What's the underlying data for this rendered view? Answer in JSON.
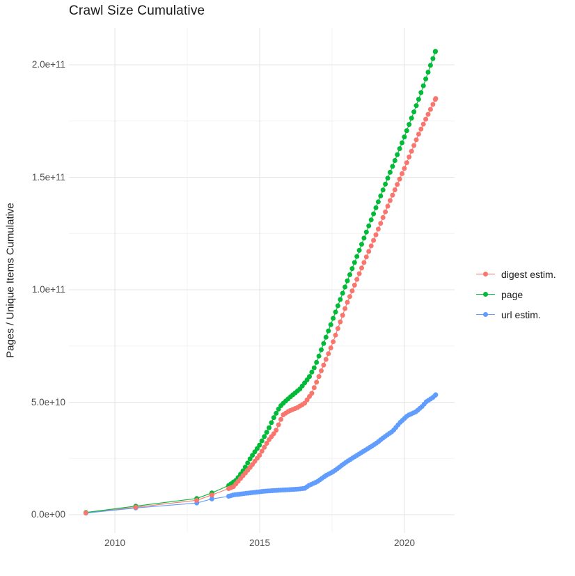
{
  "title": "Crawl Size Cumulative",
  "y_axis": {
    "label": "Pages / Unique Items Cumulative",
    "tick_labels": [
      "0.0e+00",
      "5.0e+10",
      "1.0e+11",
      "1.5e+11",
      "2.0e+11"
    ],
    "tick_values_e10": [
      0,
      5,
      10,
      15,
      20
    ],
    "minor_values_e10": [
      2.5,
      7.5,
      12.5,
      17.5
    ]
  },
  "x_axis": {
    "tick_labels": [
      "2010",
      "2015",
      "2020"
    ],
    "tick_values": [
      2010,
      2015,
      2020
    ],
    "minor_values": [
      2012.5,
      2017.5
    ]
  },
  "legend": {
    "items": [
      {
        "label": "digest estim.",
        "color": "#F8766D"
      },
      {
        "label": "page",
        "color": "#00BA38"
      },
      {
        "label": "url estim.",
        "color": "#619CFF"
      }
    ]
  },
  "style": {
    "grid_major_color": "#e5e5e5",
    "grid_minor_color": "#f2f2f2",
    "background": "#ffffff",
    "dot_radius": 3.5,
    "line_width": 1.1
  },
  "chart_data": {
    "type": "scatter",
    "title": "Crawl Size Cumulative",
    "xlabel": "",
    "ylabel": "Pages / Unique Items Cumulative",
    "x_range_years": [
      2008.4,
      2021.7
    ],
    "y_range": [
      0,
      215000000000.0
    ],
    "value_unit": "1e10 pages / unique items",
    "legend_position": "right",
    "grid": "on",
    "point_note": "Each series is one dot per crawl (~monthly after 2014); values below are cumulative totals in units of 1e10, read off the plot. sparse_points are the early isolated crawls; dense_anchors trace the dense dotted curve and dots are spaced dot_step_years apart along it.",
    "series": [
      {
        "name": "digest estim.",
        "color": "#F8766D",
        "dot_step_years": 0.082,
        "sparse_points": [
          [
            2009.0,
            0.08
          ],
          [
            2010.72,
            0.33
          ],
          [
            2012.83,
            0.64
          ],
          [
            2013.35,
            0.88
          ]
        ],
        "dense_anchors": [
          [
            2013.93,
            1.16
          ],
          [
            2014.1,
            1.25
          ],
          [
            2014.4,
            1.7
          ],
          [
            2014.7,
            2.15
          ],
          [
            2015.0,
            2.65
          ],
          [
            2015.3,
            3.3
          ],
          [
            2015.55,
            3.7
          ],
          [
            2015.8,
            4.43
          ],
          [
            2016.0,
            4.6
          ],
          [
            2016.3,
            4.76
          ],
          [
            2016.55,
            4.95
          ],
          [
            2016.8,
            5.4
          ],
          [
            2017.0,
            6.0
          ],
          [
            2017.5,
            7.55
          ],
          [
            2018.0,
            9.35
          ],
          [
            2018.5,
            10.9
          ],
          [
            2019.0,
            12.4
          ],
          [
            2019.5,
            13.95
          ],
          [
            2020.0,
            15.4
          ],
          [
            2020.5,
            16.95
          ],
          [
            2021.08,
            18.5
          ]
        ]
      },
      {
        "name": "page",
        "color": "#00BA38",
        "dot_step_years": 0.082,
        "sparse_points": [
          [
            2009.0,
            0.1
          ],
          [
            2010.72,
            0.38
          ],
          [
            2012.83,
            0.72
          ],
          [
            2013.35,
            0.97
          ]
        ],
        "dense_anchors": [
          [
            2013.93,
            1.3
          ],
          [
            2014.2,
            1.55
          ],
          [
            2014.45,
            2.0
          ],
          [
            2014.7,
            2.55
          ],
          [
            2015.0,
            3.1
          ],
          [
            2015.3,
            3.8
          ],
          [
            2015.5,
            4.35
          ],
          [
            2015.7,
            4.8
          ],
          [
            2015.85,
            5.0
          ],
          [
            2016.1,
            5.28
          ],
          [
            2016.4,
            5.6
          ],
          [
            2016.7,
            6.1
          ],
          [
            2016.92,
            6.62
          ],
          [
            2017.5,
            8.6
          ],
          [
            2018.0,
            10.3
          ],
          [
            2018.5,
            11.95
          ],
          [
            2019.0,
            13.6
          ],
          [
            2019.5,
            15.2
          ],
          [
            2020.0,
            16.8
          ],
          [
            2020.5,
            18.5
          ],
          [
            2021.07,
            20.6
          ]
        ]
      },
      {
        "name": "url estim.",
        "color": "#619CFF",
        "dot_step_years": 0.075,
        "sparse_points": [
          [
            2009.0,
            0.07
          ],
          [
            2010.72,
            0.3
          ],
          [
            2012.83,
            0.52
          ],
          [
            2013.35,
            0.7
          ]
        ],
        "dense_anchors": [
          [
            2013.93,
            0.82
          ],
          [
            2014.1,
            0.88
          ],
          [
            2014.4,
            0.93
          ],
          [
            2014.8,
            0.99
          ],
          [
            2015.2,
            1.05
          ],
          [
            2015.7,
            1.09
          ],
          [
            2016.1,
            1.12
          ],
          [
            2016.35,
            1.14
          ],
          [
            2016.55,
            1.17
          ],
          [
            2016.7,
            1.3
          ],
          [
            2017.0,
            1.48
          ],
          [
            2017.3,
            1.75
          ],
          [
            2017.55,
            1.92
          ],
          [
            2018.0,
            2.35
          ],
          [
            2018.5,
            2.75
          ],
          [
            2019.0,
            3.15
          ],
          [
            2019.3,
            3.45
          ],
          [
            2019.6,
            3.72
          ],
          [
            2019.85,
            4.1
          ],
          [
            2020.1,
            4.4
          ],
          [
            2020.4,
            4.58
          ],
          [
            2020.6,
            4.8
          ],
          [
            2020.75,
            5.02
          ],
          [
            2020.95,
            5.18
          ],
          [
            2021.08,
            5.33
          ]
        ]
      }
    ]
  }
}
